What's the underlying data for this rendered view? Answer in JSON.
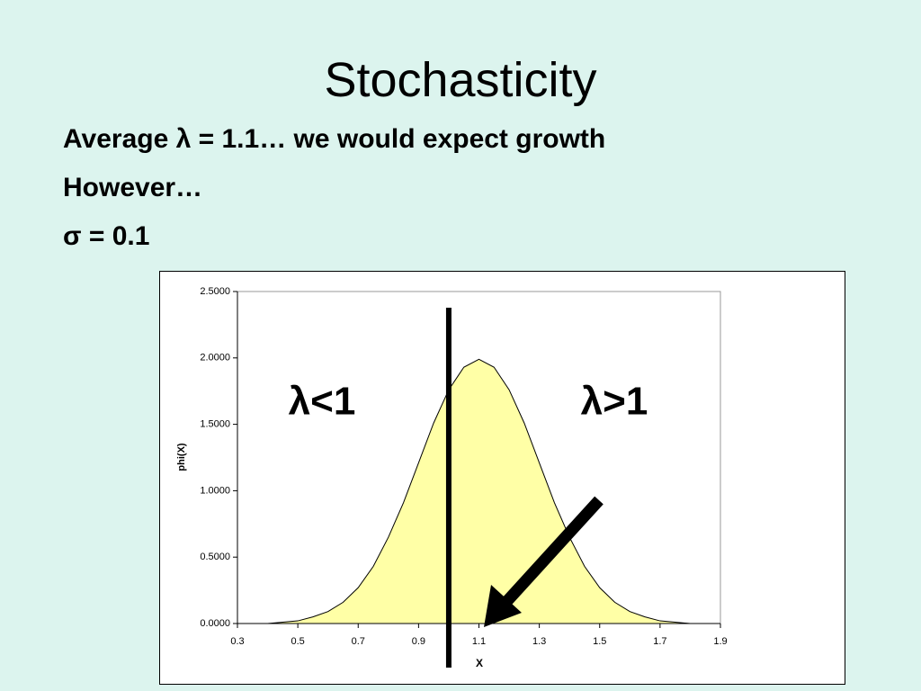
{
  "slide": {
    "title": "Stochasticity",
    "bullets": [
      "Average λ = 1.1… we would expect growth",
      "However…",
      "σ = 0.1"
    ]
  },
  "chart_data": {
    "type": "area",
    "x_label": "X",
    "y_label": "phi(X)",
    "x": [
      0.4,
      0.45,
      0.5,
      0.55,
      0.6,
      0.65,
      0.7,
      0.75,
      0.8,
      0.85,
      0.9,
      0.95,
      1.0,
      1.05,
      1.1,
      1.15,
      1.2,
      1.25,
      1.3,
      1.35,
      1.4,
      1.45,
      1.5,
      1.55,
      1.6,
      1.65,
      1.7,
      1.75,
      1.8
    ],
    "values": [
      0.0,
      0.01,
      0.02,
      0.05,
      0.09,
      0.16,
      0.27,
      0.43,
      0.65,
      0.91,
      1.21,
      1.51,
      1.76,
      1.93,
      1.99,
      1.93,
      1.76,
      1.51,
      1.21,
      0.91,
      0.65,
      0.43,
      0.27,
      0.16,
      0.09,
      0.05,
      0.02,
      0.01,
      0.0
    ],
    "color": "#ffffa6",
    "xlim": [
      0.3,
      1.9
    ],
    "xticks": [
      0.3,
      0.5,
      0.7,
      0.9,
      1.1,
      1.3,
      1.5,
      1.7,
      1.9
    ],
    "ylim": [
      0,
      2.5
    ],
    "yticks": [
      {
        "value": 0,
        "label": "0.0000"
      },
      {
        "value": 0.5,
        "label": "0.5000"
      },
      {
        "value": 1,
        "label": "1.0000"
      },
      {
        "value": 1.5,
        "label": "1.5000"
      },
      {
        "value": 2,
        "label": "2.0000"
      },
      {
        "value": 2.5,
        "label": "2.5000"
      }
    ],
    "threshold_x": 1,
    "annotations": [
      "λ<1",
      "λ>1"
    ]
  }
}
